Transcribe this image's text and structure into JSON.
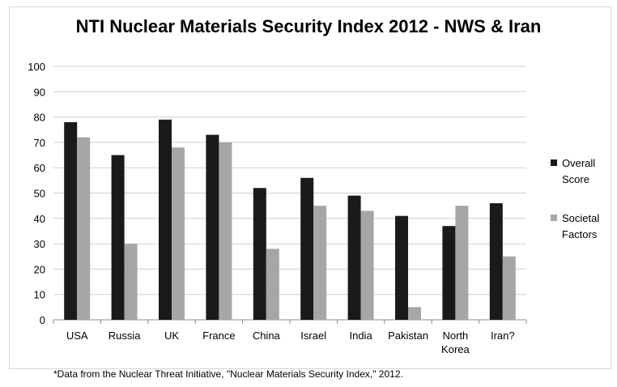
{
  "title": "NTI Nuclear Materials Security Index 2012 - NWS & Iran",
  "footnote": "*Data from the Nuclear Threat Initiative, \"Nuclear Materials Security Index,\" 2012.",
  "chart_data": {
    "type": "bar",
    "title": "NTI Nuclear Materials Security Index 2012 - NWS & Iran",
    "categories": [
      "USA",
      "Russia",
      "UK",
      "France",
      "China",
      "Israel",
      "India",
      "Pakistan",
      "North Korea",
      "Iran?"
    ],
    "category_lines": [
      [
        "USA"
      ],
      [
        "Russia"
      ],
      [
        "UK"
      ],
      [
        "France"
      ],
      [
        "China"
      ],
      [
        "Israel"
      ],
      [
        "India"
      ],
      [
        "Pakistan"
      ],
      [
        "North",
        "Korea"
      ],
      [
        "Iran?"
      ]
    ],
    "series": [
      {
        "name": "Overall Score",
        "name_lines": [
          "Overall",
          "Score"
        ],
        "color": "#1a1a1a",
        "values": [
          78,
          65,
          79,
          73,
          52,
          56,
          49,
          41,
          37,
          46
        ]
      },
      {
        "name": "Societal Factors",
        "name_lines": [
          "Societal",
          "Factors"
        ],
        "color": "#a6a6a6",
        "values": [
          72,
          30,
          68,
          70,
          28,
          45,
          43,
          5,
          45,
          25
        ]
      }
    ],
    "ylim": [
      0,
      100
    ],
    "yticks": [
      0,
      10,
      20,
      30,
      40,
      50,
      60,
      70,
      80,
      90,
      100
    ],
    "grid": true,
    "legend_position": "right",
    "xlabel": "",
    "ylabel": ""
  }
}
